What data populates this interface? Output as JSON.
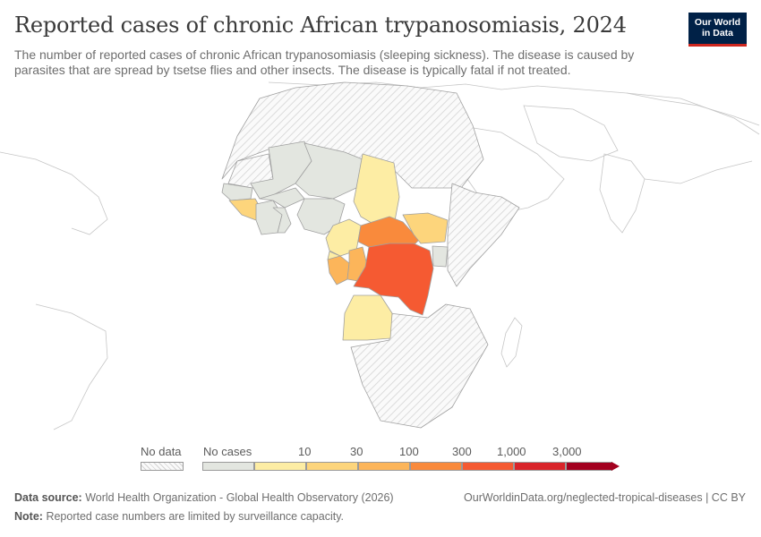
{
  "header": {
    "title": "Reported cases of chronic African trypanosomiasis, 2024",
    "subtitle": "The number of reported cases of chronic African trypanosomiasis (sleeping sickness). The disease is caused by parasites that are spread by tsetse flies and other insects. The disease is typically fatal if not treated.",
    "logo_line1": "Our World",
    "logo_line2": "in Data"
  },
  "colors": {
    "no_data_hatch": "#cfcfcf",
    "no_cases": "#e3e6e0",
    "bin_1_10": "#fdeda4",
    "bin_10_30": "#fdd57c",
    "bin_30_100": "#fcb55a",
    "bin_100_300": "#f98a3c",
    "bin_300_1000": "#f55a32",
    "bin_1000_3000": "#d9242a",
    "bin_3000_plus": "#a3001f",
    "border": "#a0a0a0",
    "ocean": "#ffffff"
  },
  "legend": {
    "no_data_label": "No data",
    "no_cases_label": "No cases",
    "tick_labels": [
      "10",
      "30",
      "100",
      "300",
      "1,000",
      "3,000"
    ]
  },
  "map_data": {
    "region": "Africa",
    "year": "2024",
    "countries": [
      {
        "name": "Democratic Republic of Congo",
        "bin": "300–1,000"
      },
      {
        "name": "Central African Republic",
        "bin": "100–300"
      },
      {
        "name": "Gabon",
        "bin": "30–100"
      },
      {
        "name": "Congo",
        "bin": "30–100"
      },
      {
        "name": "Guinea",
        "bin": "10–30"
      },
      {
        "name": "South Sudan",
        "bin": "10–30"
      },
      {
        "name": "Chad",
        "bin": "1–10"
      },
      {
        "name": "Cameroon",
        "bin": "1–10"
      },
      {
        "name": "Equatorial Guinea",
        "bin": "1–10"
      },
      {
        "name": "Angola",
        "bin": "1–10"
      },
      {
        "name": "Uganda",
        "bin": "No cases"
      },
      {
        "name": "Niger",
        "bin": "No cases"
      },
      {
        "name": "Mali",
        "bin": "No cases"
      },
      {
        "name": "Nigeria",
        "bin": "No cases"
      },
      {
        "name": "Ghana",
        "bin": "No cases"
      },
      {
        "name": "Côte d'Ivoire",
        "bin": "No cases"
      },
      {
        "name": "Senegal",
        "bin": "No cases"
      }
    ]
  },
  "footer": {
    "source_label": "Data source:",
    "source_text": "World Health Organization - Global Health Observatory (2026)",
    "url_text": "OurWorldinData.org/neglected-tropical-diseases | CC BY",
    "note_label": "Note:",
    "note_text": "Reported case numbers are limited by surveillance capacity."
  }
}
